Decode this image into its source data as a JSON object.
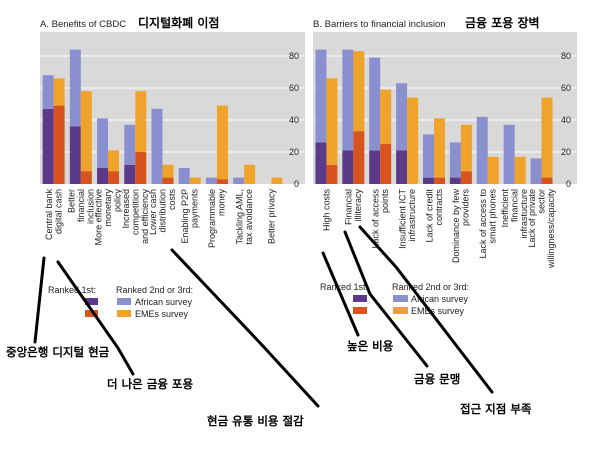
{
  "colors": {
    "panel_bg": "#d9d9d9",
    "ranked1_african": "#5b3a8a",
    "ranked1_emes": "#d9531e",
    "ranked23_african": "#8a8fd0",
    "ranked23_emes": "#f0a32a",
    "grid": "#ffffff",
    "annotation_line": "#000000"
  },
  "legend": {
    "ranked_first": "Ranked 1st:",
    "ranked_second_third": "Ranked 2nd or 3rd:",
    "african_survey": "African survey",
    "emes_survey": "EMEs survey"
  },
  "chart_data": [
    {
      "type": "bar",
      "stacked": true,
      "title": "A. Benefits of CBDC",
      "title_ko": "디지털화폐 이점",
      "ylim": [
        0,
        95
      ],
      "yticks": [
        0,
        20,
        40,
        60,
        80
      ],
      "grid": true,
      "categories": [
        "Central bank digital cash",
        "Better financial inclusion",
        "More effective monetary policy",
        "Increased competition and efficiency",
        "Lower cash distribution costs",
        "Enabling P2P payments",
        "Programmable money",
        "Tackling AML, tax avoidance",
        "Better privacy"
      ],
      "series": [
        {
          "name": "African survey – Ranked 1st",
          "group": "african",
          "values": [
            47,
            36,
            10,
            12,
            0,
            0,
            0,
            0,
            0
          ]
        },
        {
          "name": "African survey – Ranked 2nd or 3rd",
          "group": "african",
          "values": [
            21,
            48,
            31,
            25,
            47,
            10,
            4,
            4,
            0
          ]
        },
        {
          "name": "EMEs survey – Ranked 1st",
          "group": "emes",
          "values": [
            49,
            8,
            8,
            20,
            4,
            0,
            3,
            0,
            0
          ]
        },
        {
          "name": "EMEs survey – Ranked 2nd or 3rd",
          "group": "emes",
          "values": [
            17,
            50,
            13,
            38,
            8,
            4,
            46,
            12,
            4
          ]
        }
      ]
    },
    {
      "type": "bar",
      "stacked": true,
      "title": "B. Barriers to financial inclusion",
      "title_ko": "금융 포용 장벽",
      "ylim": [
        0,
        95
      ],
      "yticks": [
        0,
        20,
        40,
        60,
        80
      ],
      "grid": true,
      "categories": [
        "High costs",
        "Financial illiteracy",
        "Lack of access points",
        "Insufficient ICT infrastructure",
        "Lack of credit contracts",
        "Dominance by few providers",
        "Lack of access to smart phones",
        "Inefficient financial infrastucture",
        "Lack of private sector willingness/capacity"
      ],
      "series": [
        {
          "name": "African survey – Ranked 1st",
          "group": "african",
          "values": [
            26,
            21,
            21,
            21,
            4,
            4,
            0,
            0,
            0
          ]
        },
        {
          "name": "African survey – Ranked 2nd or 3rd",
          "group": "african",
          "values": [
            58,
            63,
            58,
            42,
            27,
            22,
            42,
            37,
            16
          ]
        },
        {
          "name": "EMEs survey – Ranked 1st",
          "group": "emes",
          "values": [
            12,
            33,
            25,
            0,
            4,
            8,
            0,
            0,
            4
          ]
        },
        {
          "name": "EMEs survey – Ranked 2nd or 3rd",
          "group": "emes",
          "values": [
            54,
            50,
            34,
            54,
            37,
            29,
            17,
            17,
            50
          ]
        }
      ]
    }
  ],
  "annotations": [
    {
      "text": "중앙은행 디지털 현금"
    },
    {
      "text": "더 나은 금융 포용"
    },
    {
      "text": "현금 유통 비용 절감"
    },
    {
      "text": "높은 비용"
    },
    {
      "text": "금융 문맹"
    },
    {
      "text": "접근 지점 부족"
    }
  ]
}
